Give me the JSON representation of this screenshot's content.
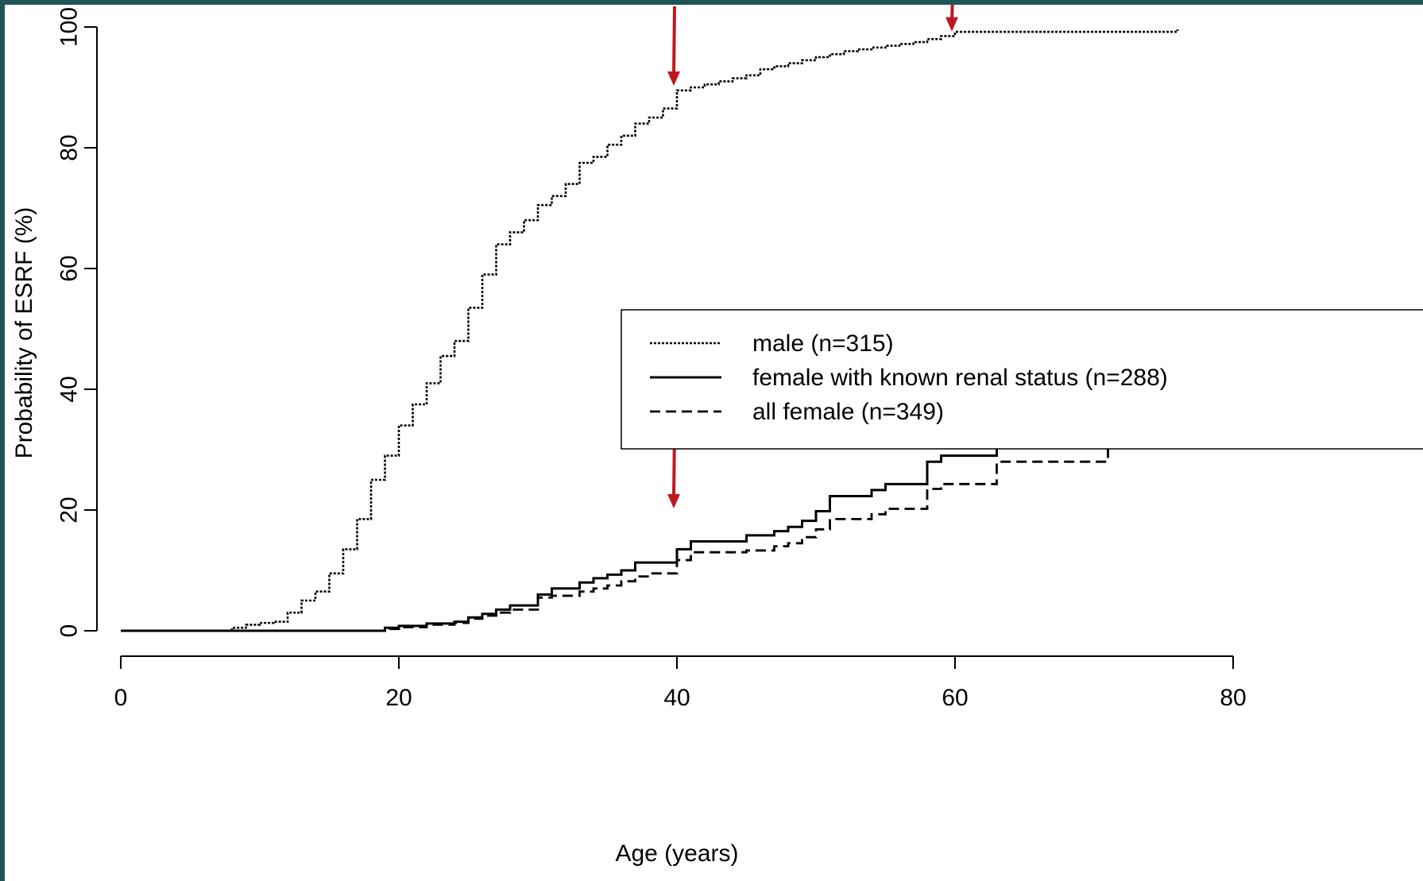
{
  "chart_data": {
    "type": "line",
    "title": "",
    "xlabel": "Age (years)",
    "ylabel": "Probability of ESRF (%)",
    "xlim": [
      0,
      80
    ],
    "ylim": [
      0,
      100
    ],
    "xticks": [
      "0",
      "20",
      "40",
      "60",
      "80"
    ],
    "yticks": [
      "0",
      "20",
      "40",
      "60",
      "80",
      "100"
    ],
    "grid": false,
    "legend_position": "right",
    "step_plot": true,
    "series": [
      {
        "name": "male (n=315)",
        "style": "dotted",
        "x": [
          0,
          8,
          9,
          10,
          11,
          12,
          13,
          14,
          15,
          16,
          17,
          18,
          19,
          20,
          21,
          22,
          23,
          24,
          25,
          26,
          27,
          28,
          29,
          30,
          31,
          32,
          33,
          34,
          35,
          36,
          37,
          38,
          39,
          40,
          41,
          42,
          43,
          44,
          45,
          46,
          47,
          48,
          49,
          50,
          51,
          52,
          53,
          54,
          55,
          56,
          57,
          58,
          59,
          60,
          61,
          62,
          63,
          64,
          65,
          66,
          67,
          68,
          69,
          70,
          71,
          72,
          73,
          74,
          75,
          76
        ],
        "y": [
          0,
          0.5,
          1,
          1.3,
          1.5,
          3,
          5,
          6.5,
          9.5,
          13.5,
          18.5,
          25,
          29,
          34,
          37.5,
          41,
          45.5,
          48,
          53.5,
          59,
          64,
          66,
          68,
          70.5,
          72,
          74,
          77.5,
          78.5,
          80.5,
          82,
          84,
          85,
          86.5,
          89.5,
          90,
          90.5,
          91,
          91.5,
          92,
          93,
          93.5,
          94,
          94.5,
          95,
          95.5,
          96,
          96.3,
          96.6,
          96.9,
          97.2,
          97.5,
          98,
          98.5,
          99.2,
          99.2,
          99.2,
          99.2,
          99.2,
          99.2,
          99.2,
          99.2,
          99.2,
          99.2,
          99.2,
          99.2,
          99.2,
          99.2,
          99.2,
          99.2,
          99.6
        ]
      },
      {
        "name": "female with known renal status (n=288)",
        "style": "solid",
        "x": [
          0,
          19,
          20,
          22,
          24,
          25,
          26,
          27,
          28,
          30,
          31,
          33,
          34,
          35,
          36,
          37,
          39,
          40,
          41,
          45,
          47,
          48,
          49,
          50,
          51,
          54,
          55,
          58,
          59,
          63,
          71,
          73,
          80
        ],
        "y": [
          0,
          0.5,
          0.8,
          1.2,
          1.5,
          2.2,
          2.8,
          3.5,
          4.2,
          6,
          7,
          8,
          8.7,
          9.3,
          10,
          11.3,
          11.3,
          13.5,
          14.8,
          15.8,
          16.5,
          17.2,
          18.2,
          19.8,
          22.3,
          23.3,
          24.3,
          28,
          29,
          33.3,
          36.2,
          39.8,
          39.8
        ]
      },
      {
        "name": "all female (n=349)",
        "style": "dashed",
        "x": [
          0,
          19,
          20,
          22,
          24,
          25,
          26,
          27,
          28,
          30,
          31,
          33,
          34,
          35,
          36,
          37,
          38,
          40,
          41,
          45,
          47,
          48,
          49,
          50,
          51,
          54,
          55,
          58,
          59,
          63,
          71,
          73,
          80
        ],
        "y": [
          0,
          0.3,
          0.6,
          1,
          1.3,
          2,
          2.5,
          3,
          3.5,
          5.5,
          5.8,
          6.5,
          7,
          7.5,
          8.2,
          9,
          9.5,
          11.7,
          13,
          13.3,
          14,
          14.5,
          15.5,
          16.8,
          18.5,
          19.3,
          20.2,
          23.5,
          24.3,
          28,
          30.5,
          33.8,
          33.8
        ]
      }
    ],
    "annotations": [
      {
        "type": "red-arrow",
        "x": 40,
        "target_y": 90
      },
      {
        "type": "red-arrow",
        "x": 60,
        "target_y": 99
      },
      {
        "type": "red-arrow",
        "x": 40,
        "target_y": 20
      },
      {
        "type": "red-arrow",
        "x": 60,
        "target_y": 31
      }
    ]
  },
  "colors": {
    "arrow": "#c0171f",
    "line": "#000000",
    "background": "#ffffff",
    "border": "#1f5559"
  }
}
